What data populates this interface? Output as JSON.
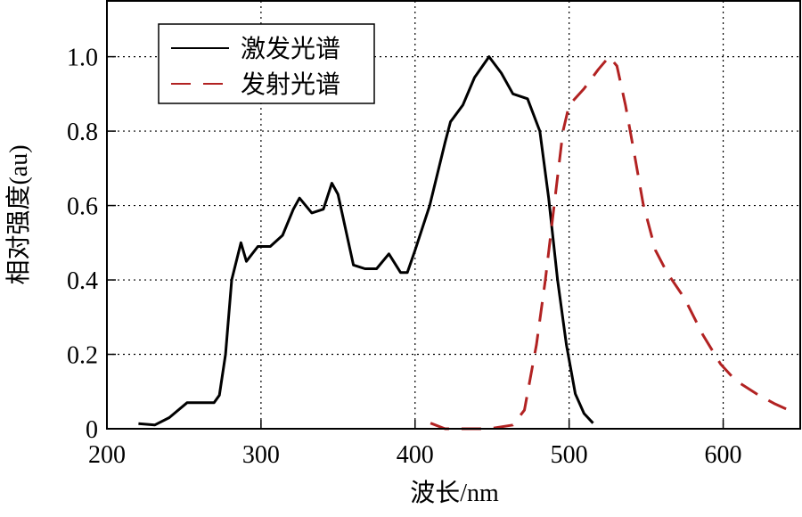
{
  "chart_data": {
    "type": "line",
    "xlabel": "波长/nm",
    "ylabel": "相对强度(au)",
    "xlim": [
      200,
      650
    ],
    "ylim": [
      0,
      1.15
    ],
    "xticks": [
      200,
      300,
      400,
      500,
      600
    ],
    "xtick_labels": [
      "200",
      "300",
      "400",
      "500",
      "600"
    ],
    "yticks": [
      0,
      0.2,
      0.4,
      0.6,
      0.8,
      1.0
    ],
    "ytick_labels": [
      "0",
      "0.2",
      "0.4",
      "0.6",
      "0.8",
      "1.0"
    ],
    "grid": true,
    "legend_position": "top-left",
    "series": [
      {
        "name": "激发光谱",
        "color": "#000000",
        "style": "solid",
        "x": [
          220.5,
          231,
          240.5,
          252,
          269.5,
          273,
          277,
          281,
          287,
          290.5,
          298,
          306,
          314,
          321,
          325,
          333,
          340.5,
          346,
          350,
          360,
          367.5,
          375,
          383,
          390.6,
          395,
          400,
          409.5,
          419.5,
          423,
          431,
          438.6,
          448,
          456,
          463.5,
          473,
          481,
          486.7,
          492.5,
          498.2,
          504,
          509.7,
          515.5
        ],
        "y": [
          0.014,
          0.01,
          0.03,
          0.07,
          0.07,
          0.09,
          0.2,
          0.4,
          0.5,
          0.45,
          0.49,
          0.49,
          0.52,
          0.59,
          0.62,
          0.58,
          0.59,
          0.66,
          0.63,
          0.44,
          0.43,
          0.43,
          0.47,
          0.42,
          0.42,
          0.48,
          0.6,
          0.77,
          0.825,
          0.87,
          0.944,
          1.0,
          0.956,
          0.9,
          0.887,
          0.8,
          0.62,
          0.4,
          0.226,
          0.094,
          0.041,
          0.015
        ]
      },
      {
        "name": "发射光谱",
        "color": "#b22222",
        "style": "dashed",
        "x": [
          410,
          419.5,
          448,
          463.5,
          471,
          478.8,
          484.6,
          490.4,
          496,
          500,
          509.7,
          519,
          526,
          531,
          536.6,
          542.4,
          548,
          556,
          563.5,
          575,
          586.7,
          598.3,
          608,
          621.6,
          633,
          644.7
        ],
        "y": [
          0.015,
          0.0,
          0.0,
          0.01,
          0.05,
          0.226,
          0.4,
          0.605,
          0.8,
          0.87,
          0.914,
          0.966,
          1.0,
          0.975,
          0.87,
          0.737,
          0.605,
          0.48,
          0.42,
          0.35,
          0.253,
          0.174,
          0.13,
          0.094,
          0.068,
          0.046
        ]
      }
    ]
  }
}
